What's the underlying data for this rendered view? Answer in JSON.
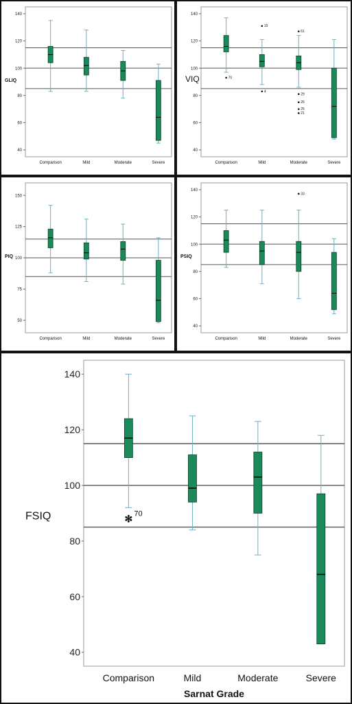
{
  "chart_data": [
    {
      "type": "box",
      "ylabel": "GLIQ",
      "categories": [
        "Comparison",
        "Mild",
        "Moderate",
        "Severe"
      ],
      "ylim": [
        35,
        145
      ],
      "yticks": [
        40,
        60,
        80,
        100,
        120,
        140
      ],
      "reference_lines": [
        85,
        100,
        115
      ],
      "boxes": [
        {
          "min": 83,
          "q1": 104,
          "median": 110,
          "q3": 116,
          "max": 135
        },
        {
          "min": 83,
          "q1": 95,
          "median": 102,
          "q3": 108,
          "max": 128
        },
        {
          "min": 78,
          "q1": 91,
          "median": 98,
          "q3": 105,
          "max": 113
        },
        {
          "min": 45,
          "q1": 47,
          "median": 64,
          "q3": 91,
          "max": 103
        }
      ],
      "outliers": []
    },
    {
      "type": "box",
      "ylabel": "VIQ",
      "categories": [
        "Comparison",
        "Mild",
        "Moderate",
        "Severe"
      ],
      "ylim": [
        35,
        145
      ],
      "yticks": [
        40,
        60,
        80,
        100,
        120,
        140
      ],
      "reference_lines": [
        85,
        100,
        115
      ],
      "boxes": [
        {
          "min": 97,
          "q1": 112,
          "median": 116,
          "q3": 124,
          "max": 137
        },
        {
          "min": 88,
          "q1": 101,
          "median": 105,
          "q3": 110,
          "max": 121
        },
        {
          "min": 86,
          "q1": 99,
          "median": 104,
          "q3": 109,
          "max": 124
        },
        {
          "min": 48,
          "q1": 49,
          "median": 72,
          "q3": 100,
          "max": 121
        }
      ],
      "outliers": [
        {
          "category": "Comparison",
          "value": 93,
          "label": "70"
        },
        {
          "category": "Mild",
          "value": 131,
          "label": "15"
        },
        {
          "category": "Mild",
          "value": 83,
          "label": "4"
        },
        {
          "category": "Moderate",
          "value": 127,
          "label": "61"
        },
        {
          "category": "Moderate",
          "value": 81,
          "label": "29"
        },
        {
          "category": "Moderate",
          "value": 75,
          "label": "26"
        },
        {
          "category": "Moderate",
          "value": 70,
          "label": "25"
        },
        {
          "category": "Moderate",
          "value": 67,
          "label": "21"
        }
      ]
    },
    {
      "type": "box",
      "ylabel": "PIQ",
      "categories": [
        "Comparison",
        "Mild",
        "Moderate",
        "Severe"
      ],
      "ylim": [
        40,
        160
      ],
      "yticks": [
        50,
        75,
        100,
        125,
        150
      ],
      "reference_lines": [
        85,
        100,
        115
      ],
      "boxes": [
        {
          "min": 88,
          "q1": 108,
          "median": 116,
          "q3": 123,
          "max": 142
        },
        {
          "min": 81,
          "q1": 99,
          "median": 104,
          "q3": 112,
          "max": 131
        },
        {
          "min": 79,
          "q1": 98,
          "median": 107,
          "q3": 113,
          "max": 127
        },
        {
          "min": 48,
          "q1": 49,
          "median": 66,
          "q3": 98,
          "max": 116
        }
      ],
      "outliers": []
    },
    {
      "type": "box",
      "ylabel": "PSIQ",
      "categories": [
        "Comparison",
        "Mild",
        "Moderate",
        "Severe"
      ],
      "ylim": [
        35,
        145
      ],
      "yticks": [
        40,
        60,
        80,
        100,
        120,
        140
      ],
      "reference_lines": [
        85,
        100,
        115
      ],
      "boxes": [
        {
          "min": 83,
          "q1": 94,
          "median": 103,
          "q3": 110,
          "max": 125
        },
        {
          "min": 71,
          "q1": 85,
          "median": 95,
          "q3": 102,
          "max": 125
        },
        {
          "min": 60,
          "q1": 80,
          "median": 94,
          "q3": 102,
          "max": 125
        },
        {
          "min": 49,
          "q1": 52,
          "median": 64,
          "q3": 94,
          "max": 104
        }
      ],
      "outliers": [
        {
          "category": "Moderate",
          "value": 137,
          "label": "33"
        }
      ]
    },
    {
      "type": "box",
      "ylabel": "FSIQ",
      "xlabel": "Sarnat Grade",
      "categories": [
        "Comparison",
        "Mild",
        "Moderate",
        "Severe"
      ],
      "ylim": [
        35,
        145
      ],
      "yticks": [
        40,
        60,
        80,
        100,
        120,
        140
      ],
      "reference_lines": [
        85,
        100,
        115
      ],
      "boxes": [
        {
          "min": 92,
          "q1": 110,
          "median": 117,
          "q3": 124,
          "max": 140
        },
        {
          "min": 84,
          "q1": 94,
          "median": 99,
          "q3": 111,
          "max": 125
        },
        {
          "min": 75,
          "q1": 90,
          "median": 103,
          "q3": 112,
          "max": 123
        },
        {
          "min": 43,
          "q1": 43,
          "median": 68,
          "q3": 97,
          "max": 118
        }
      ],
      "outliers": [
        {
          "category": "Comparison",
          "value": 88,
          "label": "70",
          "marker": "star"
        }
      ]
    }
  ],
  "colors": {
    "box": "#1b8a5a",
    "whisker": "#6ab0c8",
    "reference": "#555555",
    "frame": "#999999"
  }
}
